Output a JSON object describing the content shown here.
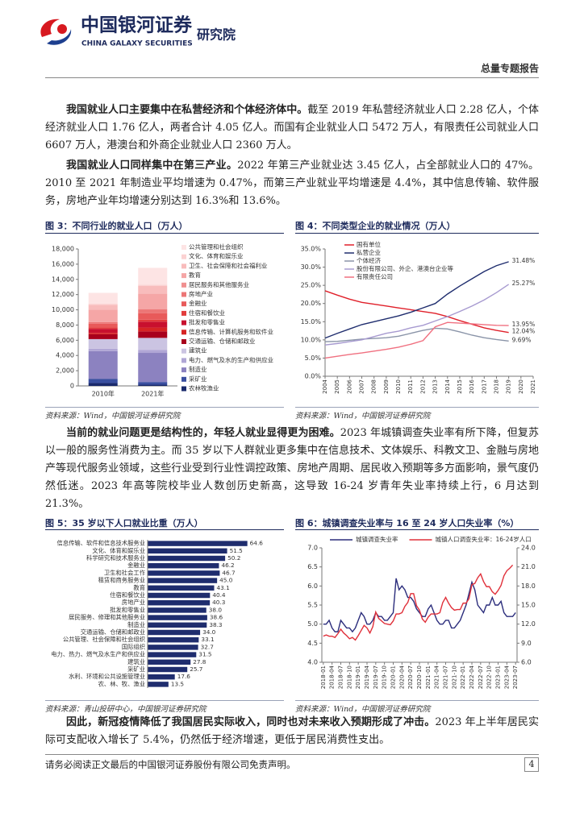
{
  "header": {
    "logo_cn": "中国银河证券",
    "logo_en": "CHINA GALAXY SECURITIES",
    "institute": "研究院",
    "report_type": "总量专题报告"
  },
  "paragraphs": [
    {
      "lead": "我国就业人口主要集中在私营经济和个体经济体中。",
      "body": "截至 2019 年私营经济就业人口 2.28 亿人，个体经济就业人口 1.76 亿人，两者合计 4.05 亿人。而国有企业就业人口 5472 万人，有限责任公司就业人口 6607 万人，港澳台和外商企业就业人口 2360 万人。"
    },
    {
      "lead": "我国就业人口同样集中在第三产业。",
      "body": "2022 年第三产业就业达 3.45 亿人，占全部就业人口的 47%。2010 至 2021 年制造业平均增速为 0.47%，而第三产业就业平均增速是 4.4%，其中信息传输、软件服务，房地产业年均增速分别达到 16.3%和 13.6%。"
    },
    {
      "lead": "当前的就业问题更是结构性的，年轻人就业显得更为困难。",
      "body": "2023 年城镇调查失业率有所下降，但复苏以一般的服务性消费为主。而 35 岁以下人群就业更多集中在信息技术、文体娱乐、科教文卫、金融与房地产等现代服务业领域，这些行业受到行业性调控政策、房地产周期、居民收入预期等多方面影响，景气度仍然低迷。2023 年高等院校毕业人数创历史新高，这导致 16-24 岁青年失业率持续上行，6 月达到 21.3%。"
    },
    {
      "lead": "因此，新冠疫情降低了我国居民实际收入，同时也对未来收入预期形成了冲击。",
      "body": "2023 年上半年居民实际可支配收入增长了 5.4%，仍然低于经济增速，更低于居民消费性支出。"
    }
  ],
  "chart_data": [
    {
      "type": "bar",
      "stacked": true,
      "title": "图 3：不同行业的就业人口（万人）",
      "source": "资料来源：Wind，中国银河证券研究院",
      "categories": [
        "2010年",
        "2021年"
      ],
      "ylim": [
        0,
        18000
      ],
      "yticks": [
        0,
        {
          "value": 2000,
          "label": "2,000"
        },
        {
          "value": 4000,
          "label": "4,000"
        },
        {
          "value": 6000,
          "label": "6,000"
        },
        {
          "value": 8000,
          "label": "8,000"
        },
        {
          "value": 10000,
          "label": "10,000"
        },
        {
          "value": 12000,
          "label": "12,000"
        },
        {
          "value": 14000,
          "label": "14,000"
        },
        {
          "value": 16000,
          "label": "16,000"
        },
        {
          "value": 18000,
          "label": "18,000"
        }
      ],
      "series": [
        {
          "name": "公共管理和社会组织",
          "color": "#fde4e4",
          "values": [
            1429,
            2200
          ]
        },
        {
          "name": "文化、体育和娱乐业",
          "color": "#fbd2d2",
          "values": [
            131,
            150
          ]
        },
        {
          "name": "卫生、社会保障和社会福利业",
          "color": "#f8bcbc",
          "values": [
            633,
            1050
          ]
        },
        {
          "name": "教育",
          "color": "#f5a6a6",
          "values": [
            1581,
            1985
          ]
        },
        {
          "name": "居民服务和其他服务业",
          "color": "#f09090",
          "values": [
            60,
            73
          ]
        },
        {
          "name": "房地产业",
          "color": "#ec7676",
          "values": [
            211,
            520
          ]
        },
        {
          "name": "金融业",
          "color": "#e85a5a",
          "values": [
            470,
            830
          ]
        },
        {
          "name": "住宿和餐饮业",
          "color": "#e23c3c",
          "values": [
            209,
            258
          ]
        },
        {
          "name": "批发和零售业",
          "color": "#c8102e",
          "values": [
            535,
            780
          ]
        },
        {
          "name": "信息传输、计算机服务和软件业",
          "color": "#d62424",
          "values": [
            185,
            505
          ]
        },
        {
          "name": "交通运输、仓储和邮政业",
          "color": "#a8001c",
          "values": [
            631,
            851
          ]
        },
        {
          "name": "建筑业",
          "color": "#cbc4e2",
          "values": [
            1267,
            1600
          ]
        },
        {
          "name": "电力、燃气及水的生产和供应业",
          "color": "#b0a6d5",
          "values": [
            310,
            373
          ]
        },
        {
          "name": "制造业",
          "color": "#8c82c0",
          "values": [
            3637,
            3828
          ]
        },
        {
          "name": "采矿业",
          "color": "#3a4fa0",
          "values": [
            562,
            354
          ]
        },
        {
          "name": "农林牧渔业",
          "color": "#1a2a6c",
          "values": [
            375,
            157
          ]
        }
      ]
    },
    {
      "type": "line",
      "title": "图 4：不同类型企业的就业情况（万人）",
      "source": "资料来源：Wind，中国银河证券研究院",
      "legend": "top-left",
      "x": [
        2004,
        2005,
        2006,
        2007,
        2008,
        2009,
        2010,
        2011,
        2012,
        2013,
        2014,
        2015,
        2016,
        2017,
        2018,
        2019
      ],
      "xlim": [
        2004,
        2021
      ],
      "xticks": [
        2004,
        2005,
        2006,
        2007,
        2008,
        2009,
        2010,
        2011,
        2012,
        2013,
        2014,
        2015,
        2016,
        2017,
        2018,
        2019,
        2020,
        2021
      ],
      "ylim": [
        0,
        35
      ],
      "yticks": [
        {
          "value": 0,
          "label": "0.0%"
        },
        {
          "value": 5,
          "label": "5.0%"
        },
        {
          "value": 10,
          "label": "10.0%"
        },
        {
          "value": 15,
          "label": "15.0%"
        },
        {
          "value": 20,
          "label": "20.0%"
        },
        {
          "value": 25,
          "label": "25.0%"
        },
        {
          "value": 30,
          "label": "30.0%"
        },
        {
          "value": 35,
          "label": "35.0%"
        }
      ],
      "series": [
        {
          "name": "国有单位",
          "color": "#e0202a",
          "values": [
            23.5,
            22.3,
            21.2,
            20.3,
            19.8,
            19.3,
            18.8,
            18.3,
            17.8,
            17.3,
            16.4,
            15.3,
            14.3,
            13.3,
            12.6,
            12.04
          ],
          "value_labels": [
            null,
            null,
            null,
            null,
            null,
            null,
            null,
            null,
            null,
            null,
            null,
            null,
            null,
            null,
            null,
            "12.04%"
          ]
        },
        {
          "name": "私营企业",
          "color": "#1f2d6e",
          "values": [
            10.5,
            11.8,
            13.0,
            14.2,
            15.0,
            15.8,
            16.6,
            17.6,
            18.8,
            20.0,
            22.6,
            24.8,
            26.8,
            28.8,
            30.4,
            31.48
          ],
          "value_labels": [
            null,
            null,
            null,
            null,
            null,
            null,
            null,
            null,
            null,
            null,
            null,
            null,
            null,
            null,
            null,
            "31.48%"
          ]
        },
        {
          "name": "个体经济",
          "color": "#8a94a8",
          "values": [
            9.5,
            9.6,
            9.9,
            10.2,
            10.4,
            10.6,
            11.0,
            11.8,
            12.6,
            13.2,
            13.0,
            12.2,
            11.3,
            10.6,
            10.1,
            9.69
          ],
          "value_labels": [
            null,
            null,
            null,
            null,
            null,
            null,
            null,
            null,
            null,
            null,
            null,
            null,
            null,
            null,
            null,
            "9.69%"
          ]
        },
        {
          "name": "股份有限公司、外企、港澳台企业等",
          "color": "#a79ad0",
          "values": [
            8.6,
            9.0,
            9.5,
            10.0,
            10.9,
            11.8,
            12.4,
            13.3,
            14.0,
            15.2,
            16.4,
            17.8,
            19.3,
            21.0,
            23.0,
            25.27
          ],
          "value_labels": [
            null,
            null,
            null,
            null,
            null,
            null,
            null,
            null,
            null,
            null,
            null,
            null,
            null,
            null,
            null,
            "25.27%"
          ]
        },
        {
          "name": "有限责任公司",
          "color": "#f07080",
          "values": [
            5.0,
            5.5,
            6.0,
            6.4,
            6.9,
            7.4,
            8.0,
            8.8,
            9.8,
            13.6,
            14.8,
            14.6,
            14.4,
            14.2,
            14.0,
            13.95
          ],
          "value_labels": [
            null,
            null,
            null,
            null,
            null,
            null,
            null,
            null,
            null,
            null,
            null,
            null,
            null,
            null,
            null,
            "13.95%"
          ]
        }
      ]
    },
    {
      "type": "barh",
      "title": "图 5：35 岁以下人口就业比重（万人）",
      "source": "资料来源：青山投研中心，中国银河证券研究院",
      "color": "#1f2d6e",
      "xlim": [
        0,
        70
      ],
      "categories": [
        "信息传输、软件和信息技术服务业",
        "文化、体育和娱乐业",
        "科学研究和技术服务业",
        "金融业",
        "卫生和社会工作",
        "租赁和商务服务业",
        "教育",
        "住宿和餐饮业",
        "房地产业",
        "批发和零售业",
        "居民服务、修理和其他服务业",
        "制造业",
        "交通运输、仓储和邮政业",
        "公共管理、社会保障和社会组织",
        "国际组织",
        "电力、热力、燃气及水生产和供应业",
        "建筑业",
        "采矿业",
        "水利、环境和公共设施管理业",
        "农、林、牧、渔业"
      ],
      "values": [
        64.6,
        51.5,
        50.2,
        46.2,
        46.7,
        45,
        43.1,
        40.4,
        40.3,
        38,
        38.6,
        38.3,
        34,
        33.1,
        32.7,
        31.5,
        27.8,
        25.7,
        17.6,
        13.5
      ],
      "value_labels": [
        "64.6",
        "51.5",
        "50.2",
        "46.2",
        "46.7",
        "45.0",
        "43.1",
        "40.4",
        "40.3",
        "38.0",
        "38.6",
        "38.3",
        "34.0",
        "33.1",
        "32.7",
        "31.5",
        "27.8",
        "25.7",
        "17.6",
        "13.5"
      ]
    },
    {
      "type": "line",
      "title": "图 6：城镇调查失业率与 16 至 24 岁人口失业率（%）",
      "source": "资料来源：Wind，中国银河证券研究院",
      "legend": "top",
      "categories": [
        "2018-01",
        null,
        null,
        "2018-04",
        null,
        null,
        "2018-07",
        null,
        null,
        "2018-10",
        null,
        null,
        "2019-01",
        null,
        null,
        "2019-04",
        null,
        null,
        "2019-07",
        null,
        null,
        "2019-10",
        null,
        null,
        "2020-01",
        null,
        null,
        "2020-04",
        null,
        null,
        "2020-07",
        null,
        null,
        "2020-10",
        null,
        null,
        "2021-01",
        null,
        null,
        "2021-04",
        null,
        null,
        "2021-07",
        null,
        null,
        "2021-10",
        null,
        null,
        "2022-01",
        null,
        null,
        "2022-04",
        null,
        null,
        "2022-07",
        null,
        null,
        "2022-10",
        null,
        null,
        "2023-01",
        null,
        null,
        "2023-04",
        null,
        null,
        "2023-07"
      ],
      "ylim": [
        4,
        7
      ],
      "yticks": [
        {
          "value": 4,
          "label": "4.0"
        },
        4.5,
        {
          "value": 5,
          "label": "5.0"
        },
        5.5,
        {
          "value": 6,
          "label": "6.0"
        },
        6.5,
        {
          "value": 7,
          "label": "7.0"
        }
      ],
      "y2lim": [
        6,
        24
      ],
      "y2ticks": [
        {
          "value": 6,
          "label": "6.0"
        },
        {
          "value": 9,
          "label": "9.0"
        },
        {
          "value": 12,
          "label": "12.0"
        },
        {
          "value": 15,
          "label": "15.0"
        },
        {
          "value": 18,
          "label": "18.0"
        },
        {
          "value": 21,
          "label": "21.0"
        },
        {
          "value": 24,
          "label": "24.0"
        }
      ],
      "series": [
        {
          "name": "城镇调查失业率",
          "color": "#2b2d7c",
          "values": [
            5.0,
            5.0,
            5.1,
            4.9,
            4.8,
            4.8,
            5.1,
            5.0,
            4.9,
            4.9,
            4.8,
            4.9,
            5.1,
            5.3,
            5.2,
            5.0,
            5.0,
            5.1,
            5.3,
            5.2,
            5.2,
            5.1,
            5.1,
            5.2,
            5.3,
            6.2,
            5.9,
            6.0,
            5.9,
            5.7,
            5.7,
            5.6,
            5.4,
            5.3,
            5.2,
            5.2,
            5.4,
            5.5,
            5.3,
            5.1,
            5.0,
            5.0,
            5.1,
            5.1,
            4.9,
            4.9,
            5.0,
            5.1,
            5.3,
            5.5,
            5.8,
            6.1,
            5.9,
            5.5,
            5.4,
            5.3,
            5.5,
            5.5,
            5.7,
            5.5,
            5.5,
            5.6,
            5.3,
            5.2,
            5.2,
            5.2,
            5.3
          ]
        },
        {
          "name": "城镇人口调查失业率：16-24岁人口",
          "color": "#e0303a",
          "axis": "y2",
          "values": [
            10.1,
            10.3,
            10.1,
            10.1,
            9.9,
            10.5,
            11.2,
            10.6,
            10.2,
            9.7,
            9.9,
            9.5,
            10.2,
            11.0,
            11.8,
            11.4,
            10.6,
            11.6,
            13.9,
            12.9,
            12.5,
            12.1,
            12.0,
            11.9,
            12.5,
            13.6,
            13.6,
            13.8,
            14.8,
            15.4,
            16.8,
            16.8,
            14.9,
            14.2,
            12.8,
            12.3,
            13.1,
            13.6,
            13.6,
            13.6,
            13.8,
            15.4,
            16.2,
            15.3,
            14.6,
            14.2,
            14.3,
            14.3,
            15.3,
            15.3,
            16.0,
            18.2,
            18.4,
            19.3,
            19.9,
            18.7,
            17.9,
            17.9,
            17.1,
            16.7,
            17.3,
            18.1,
            19.6,
            20.4,
            20.8,
            21.3,
            null
          ]
        }
      ]
    }
  ],
  "footer": {
    "disclaimer": "请务必阅读正文最后的中国银河证券股份有限公司免责声明。",
    "page": 4
  }
}
